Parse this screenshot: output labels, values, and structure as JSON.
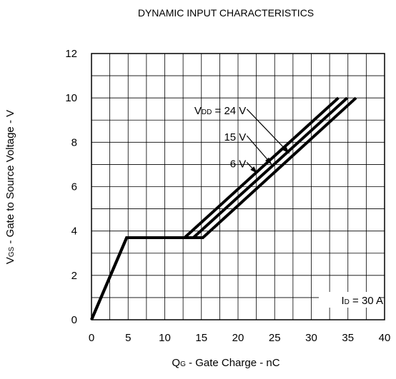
{
  "chart_data": {
    "type": "line",
    "title": "DYNAMIC INPUT CHARACTERISTICS",
    "xlabel": {
      "main": "Q",
      "sub": "G",
      "rest": " - Gate Charge - nC"
    },
    "ylabel": {
      "main": "V",
      "sub": "GS",
      "rest": " - Gate to Source Voltage - V"
    },
    "xlim": [
      0,
      40
    ],
    "ylim": [
      0,
      12
    ],
    "x_ticks": [
      "0",
      "5",
      "10",
      "15",
      "20",
      "25",
      "30",
      "35",
      "40"
    ],
    "y_ticks": [
      "0",
      "2",
      "4",
      "6",
      "8",
      "10",
      "12"
    ],
    "grid": true,
    "series": [
      {
        "name": "24 V",
        "points": [
          [
            0,
            0
          ],
          [
            4.8,
            3.7
          ],
          [
            15.2,
            3.7
          ],
          [
            36.1,
            10
          ]
        ]
      },
      {
        "name": "15 V",
        "points": [
          [
            0,
            0
          ],
          [
            4.8,
            3.7
          ],
          [
            13.9,
            3.7
          ],
          [
            34.9,
            10
          ]
        ]
      },
      {
        "name": "6 V",
        "points": [
          [
            0,
            0
          ],
          [
            4.8,
            3.7
          ],
          [
            12.7,
            3.7
          ],
          [
            33.7,
            10
          ]
        ]
      }
    ],
    "annotations": {
      "vdd_prefix": {
        "main": "V",
        "sub": "DD",
        "rest": " = "
      },
      "labels": [
        {
          "text": "24 V",
          "label_at": [
            21.2,
            9.4
          ],
          "arrow_to": [
            27.0,
            7.5
          ]
        },
        {
          "text": "15 V",
          "label_at": [
            21.2,
            8.2
          ],
          "arrow_to": [
            24.6,
            7.0
          ]
        },
        {
          "text": "6 V",
          "label_at": [
            21.2,
            7.0
          ],
          "arrow_to": [
            22.6,
            6.6
          ]
        }
      ],
      "condition": {
        "main": "I",
        "sub": "D",
        "rest": " = 30 A"
      }
    }
  }
}
